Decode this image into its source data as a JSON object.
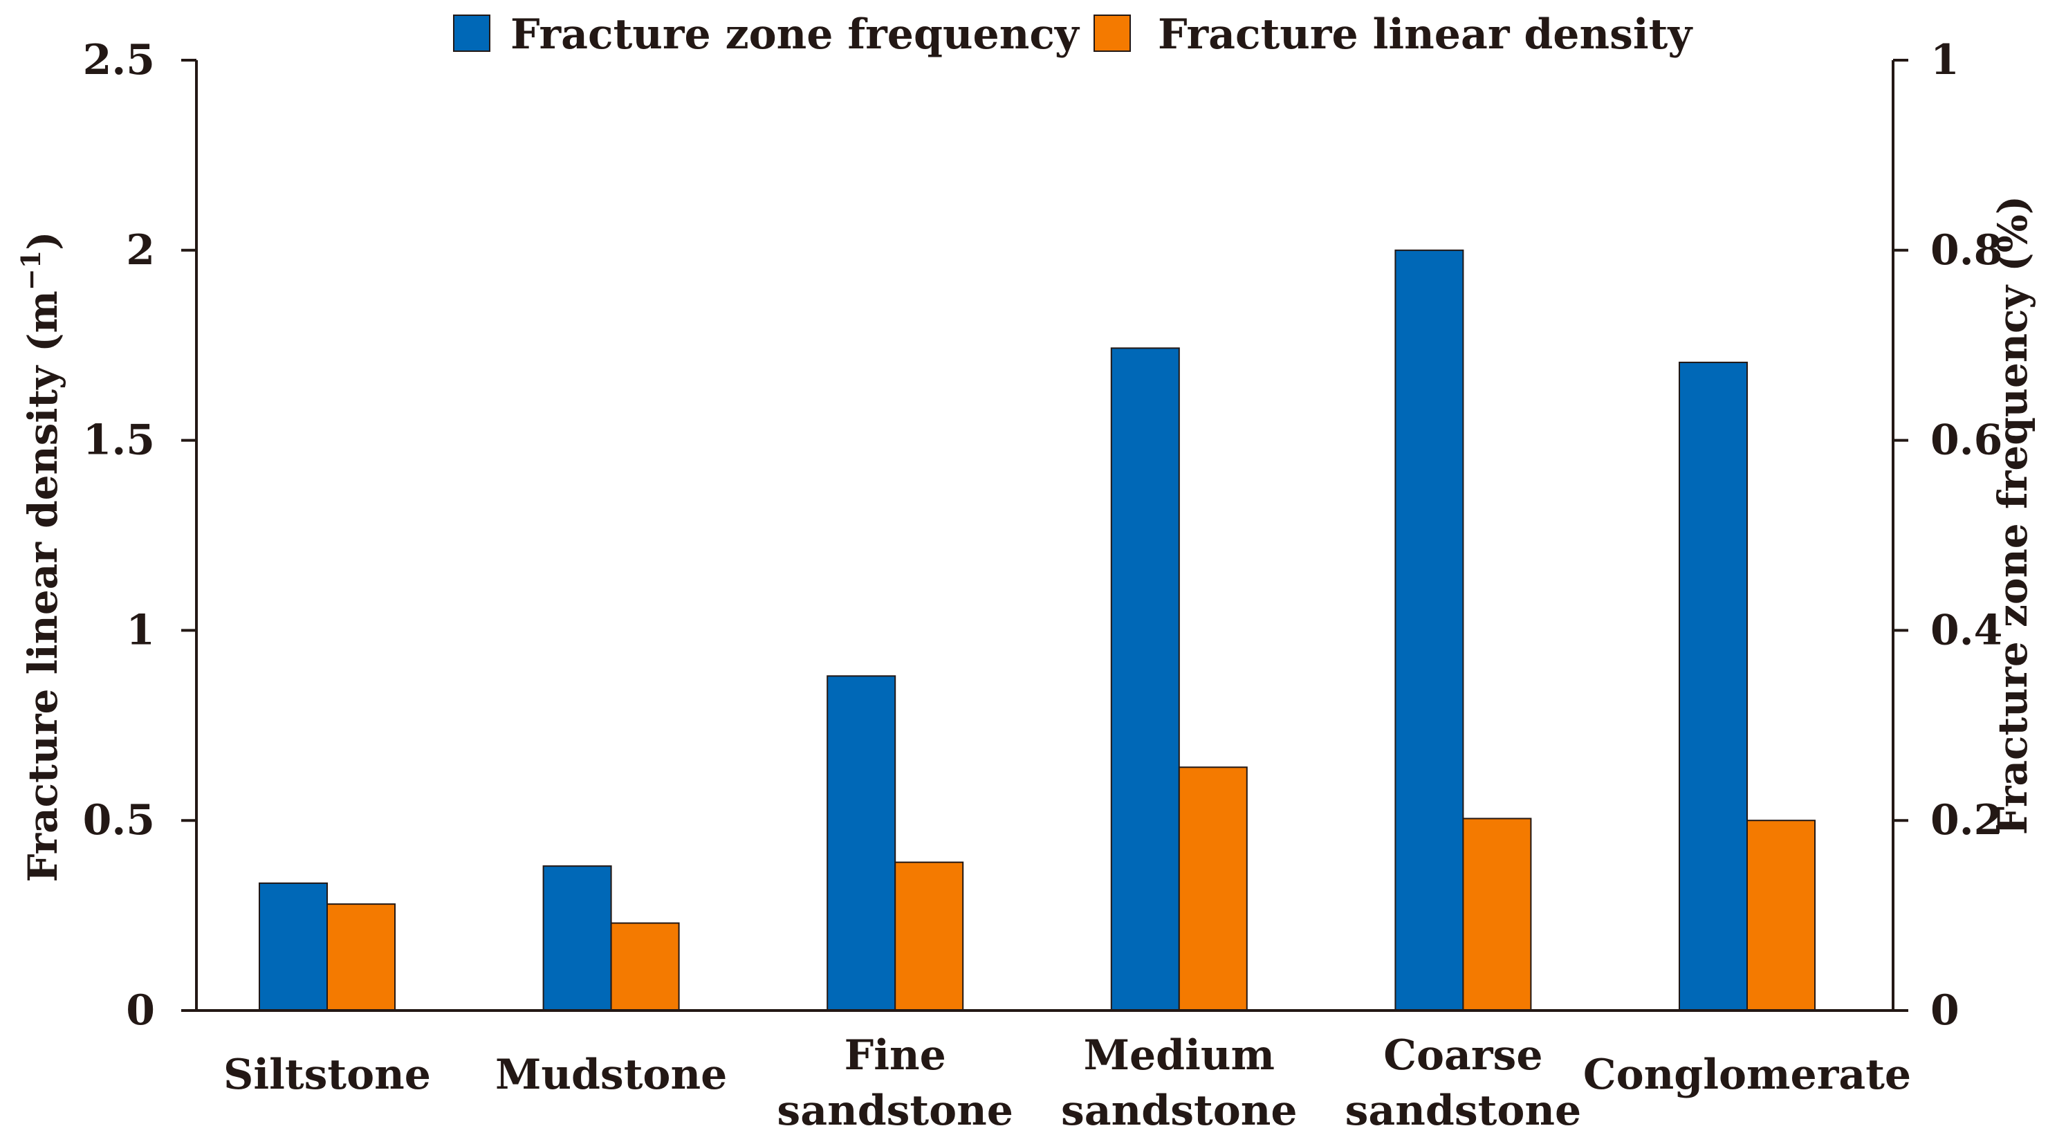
{
  "chart_data": {
    "type": "bar",
    "categories": [
      [
        "Siltstone"
      ],
      [
        "Mudstone"
      ],
      [
        "Fine",
        "sandstone"
      ],
      [
        "Medium",
        "sandstone"
      ],
      [
        "Coarse",
        "sandstone"
      ],
      [
        "Conglomerate"
      ]
    ],
    "series": [
      {
        "name": "Fracture zone frequency",
        "axis": "right",
        "color": "#0068B7",
        "values": [
          0.134,
          0.152,
          0.352,
          0.697,
          0.8,
          0.682
        ]
      },
      {
        "name": "Fracture linear density",
        "axis": "left",
        "color": "#F47A00",
        "values": [
          0.28,
          0.23,
          0.39,
          0.64,
          0.505,
          0.5
        ]
      }
    ],
    "y_left": {
      "label": "Fracture linear density (m",
      "label_superscript": "−1",
      "label_suffix": ")",
      "range": [
        0,
        2.5
      ],
      "ticks": [
        "0",
        "0.5",
        "1",
        "1.5",
        "2",
        "2.5"
      ],
      "tick_values": [
        0,
        0.5,
        1,
        1.5,
        2,
        2.5
      ]
    },
    "y_right": {
      "label": "Fracture zone frequency (%)",
      "range": [
        0,
        1
      ],
      "ticks": [
        "0",
        "0.2",
        "0.4",
        "0.6",
        "0.8",
        "1"
      ],
      "tick_values": [
        0,
        0.2,
        0.4,
        0.6,
        0.8,
        1
      ]
    },
    "legend_position": "top-center",
    "grid": false
  }
}
